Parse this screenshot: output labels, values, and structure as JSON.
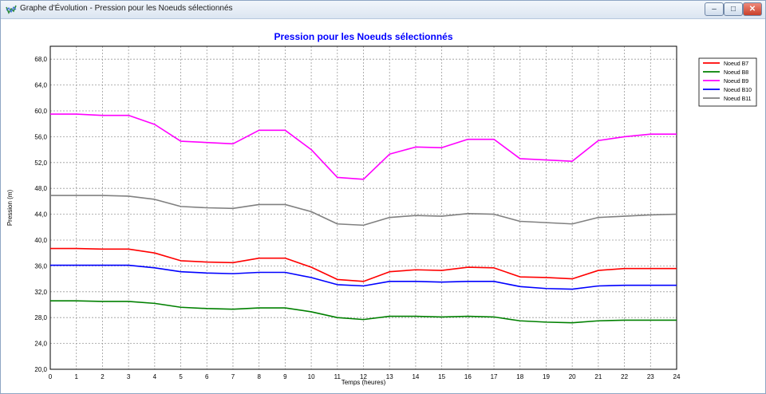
{
  "window": {
    "title": "Graphe d'Évolution - Pression pour les Noeuds sélectionnés",
    "buttons": {
      "minimize": "–",
      "maximize": "□",
      "close": "✕"
    }
  },
  "chart_data": {
    "type": "line",
    "title": "Pression pour les Noeuds sélectionnés",
    "xlabel": "Temps (heures)",
    "ylabel": "Pression (m)",
    "xlim": [
      0,
      24
    ],
    "ylim": [
      20,
      70
    ],
    "xticks": [
      "0",
      "1",
      "2",
      "3",
      "4",
      "5",
      "6",
      "7",
      "8",
      "9",
      "10",
      "11",
      "12",
      "13",
      "14",
      "15",
      "16",
      "17",
      "18",
      "19",
      "20",
      "21",
      "22",
      "23",
      "24"
    ],
    "yticks": [
      "20,0",
      "24,0",
      "28,0",
      "32,0",
      "36,0",
      "40,0",
      "44,0",
      "48,0",
      "52,0",
      "56,0",
      "60,0",
      "64,0",
      "68,0"
    ],
    "grid": true,
    "legend_position": "top-right",
    "x": [
      0,
      1,
      2,
      3,
      4,
      5,
      6,
      7,
      8,
      9,
      10,
      11,
      12,
      13,
      14,
      15,
      16,
      17,
      18,
      19,
      20,
      21,
      22,
      23,
      24
    ],
    "series": [
      {
        "name": "Noeud B7",
        "color": "#ff0000",
        "values": [
          38.7,
          38.7,
          38.6,
          38.6,
          38.0,
          36.8,
          36.6,
          36.5,
          37.2,
          37.2,
          35.8,
          33.9,
          33.6,
          35.1,
          35.4,
          35.3,
          35.8,
          35.7,
          34.3,
          34.2,
          34.0,
          35.3,
          35.6,
          35.6,
          35.6
        ]
      },
      {
        "name": "Noeud B8",
        "color": "#008000",
        "values": [
          30.6,
          30.6,
          30.5,
          30.5,
          30.2,
          29.6,
          29.4,
          29.3,
          29.5,
          29.5,
          28.9,
          28.0,
          27.7,
          28.2,
          28.2,
          28.1,
          28.2,
          28.1,
          27.5,
          27.3,
          27.2,
          27.5,
          27.6,
          27.6,
          27.6
        ]
      },
      {
        "name": "Noeud B9",
        "color": "#ff00ff",
        "values": [
          59.5,
          59.5,
          59.3,
          59.3,
          57.9,
          55.3,
          55.1,
          54.9,
          57.0,
          57.0,
          54.0,
          49.7,
          49.4,
          53.3,
          54.4,
          54.3,
          55.6,
          55.6,
          52.6,
          52.4,
          52.2,
          55.4,
          56.0,
          56.4,
          56.4
        ]
      },
      {
        "name": "Noeud B10",
        "color": "#0000ff",
        "values": [
          36.1,
          36.1,
          36.1,
          36.1,
          35.7,
          35.1,
          34.9,
          34.8,
          35.0,
          35.0,
          34.2,
          33.1,
          32.9,
          33.6,
          33.6,
          33.5,
          33.6,
          33.6,
          32.8,
          32.5,
          32.4,
          32.9,
          33.0,
          33.0,
          33.0
        ]
      },
      {
        "name": "Noeud B11",
        "color": "#808080",
        "values": [
          46.9,
          46.9,
          46.9,
          46.8,
          46.3,
          45.2,
          45.0,
          44.9,
          45.5,
          45.5,
          44.4,
          42.5,
          42.3,
          43.5,
          43.8,
          43.7,
          44.1,
          44.0,
          42.9,
          42.7,
          42.5,
          43.5,
          43.7,
          43.9,
          44.0
        ]
      }
    ]
  }
}
